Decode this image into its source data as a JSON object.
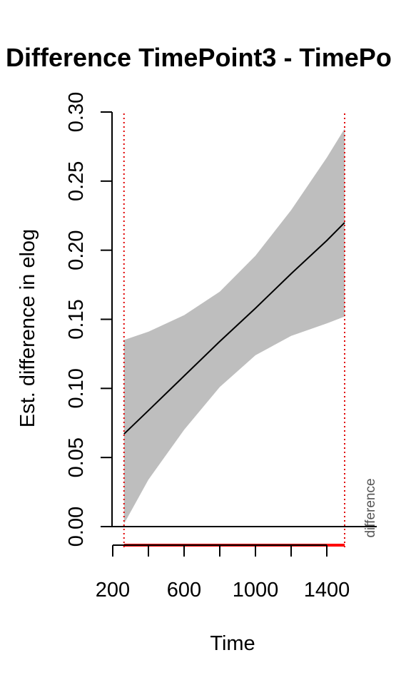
{
  "chart_data": {
    "type": "line",
    "title": "Difference TimePoint3 - TimePo",
    "xlabel": "Time",
    "ylabel": "Est. difference in elog",
    "xlim": [
      200,
      1500
    ],
    "ylim": [
      0,
      0.3
    ],
    "x_ticks": [
      200,
      400,
      600,
      800,
      1000,
      1200,
      1400
    ],
    "x_tick_labels": [
      "200",
      "600",
      "1000",
      "1400"
    ],
    "y_ticks": [
      0.0,
      0.05,
      0.1,
      0.15,
      0.2,
      0.25,
      0.3
    ],
    "y_tick_labels": [
      "0.00",
      "0.05",
      "0.10",
      "0.15",
      "0.20",
      "0.25",
      "0.30"
    ],
    "series": [
      {
        "x": [
          263,
          400,
          600,
          800,
          1000,
          1200,
          1400,
          1500
        ],
        "estimate": [
          0.067,
          0.084,
          0.109,
          0.134,
          0.158,
          0.183,
          0.207,
          0.22
        ],
        "lower": [
          0.002,
          0.034,
          0.07,
          0.101,
          0.124,
          0.138,
          0.147,
          0.152
        ],
        "upper": [
          0.135,
          0.141,
          0.153,
          0.17,
          0.196,
          0.229,
          0.267,
          0.288
        ]
      }
    ],
    "reference_lines": {
      "h": [
        0
      ],
      "v": [
        263,
        1500
      ]
    },
    "difference_interval": [
      263,
      1500
    ],
    "difference_label": "difference",
    "colors": {
      "ci_band": "#bebebe",
      "line": "#000000",
      "vline": "#e00000",
      "diff_bar": "#ff0000"
    }
  }
}
